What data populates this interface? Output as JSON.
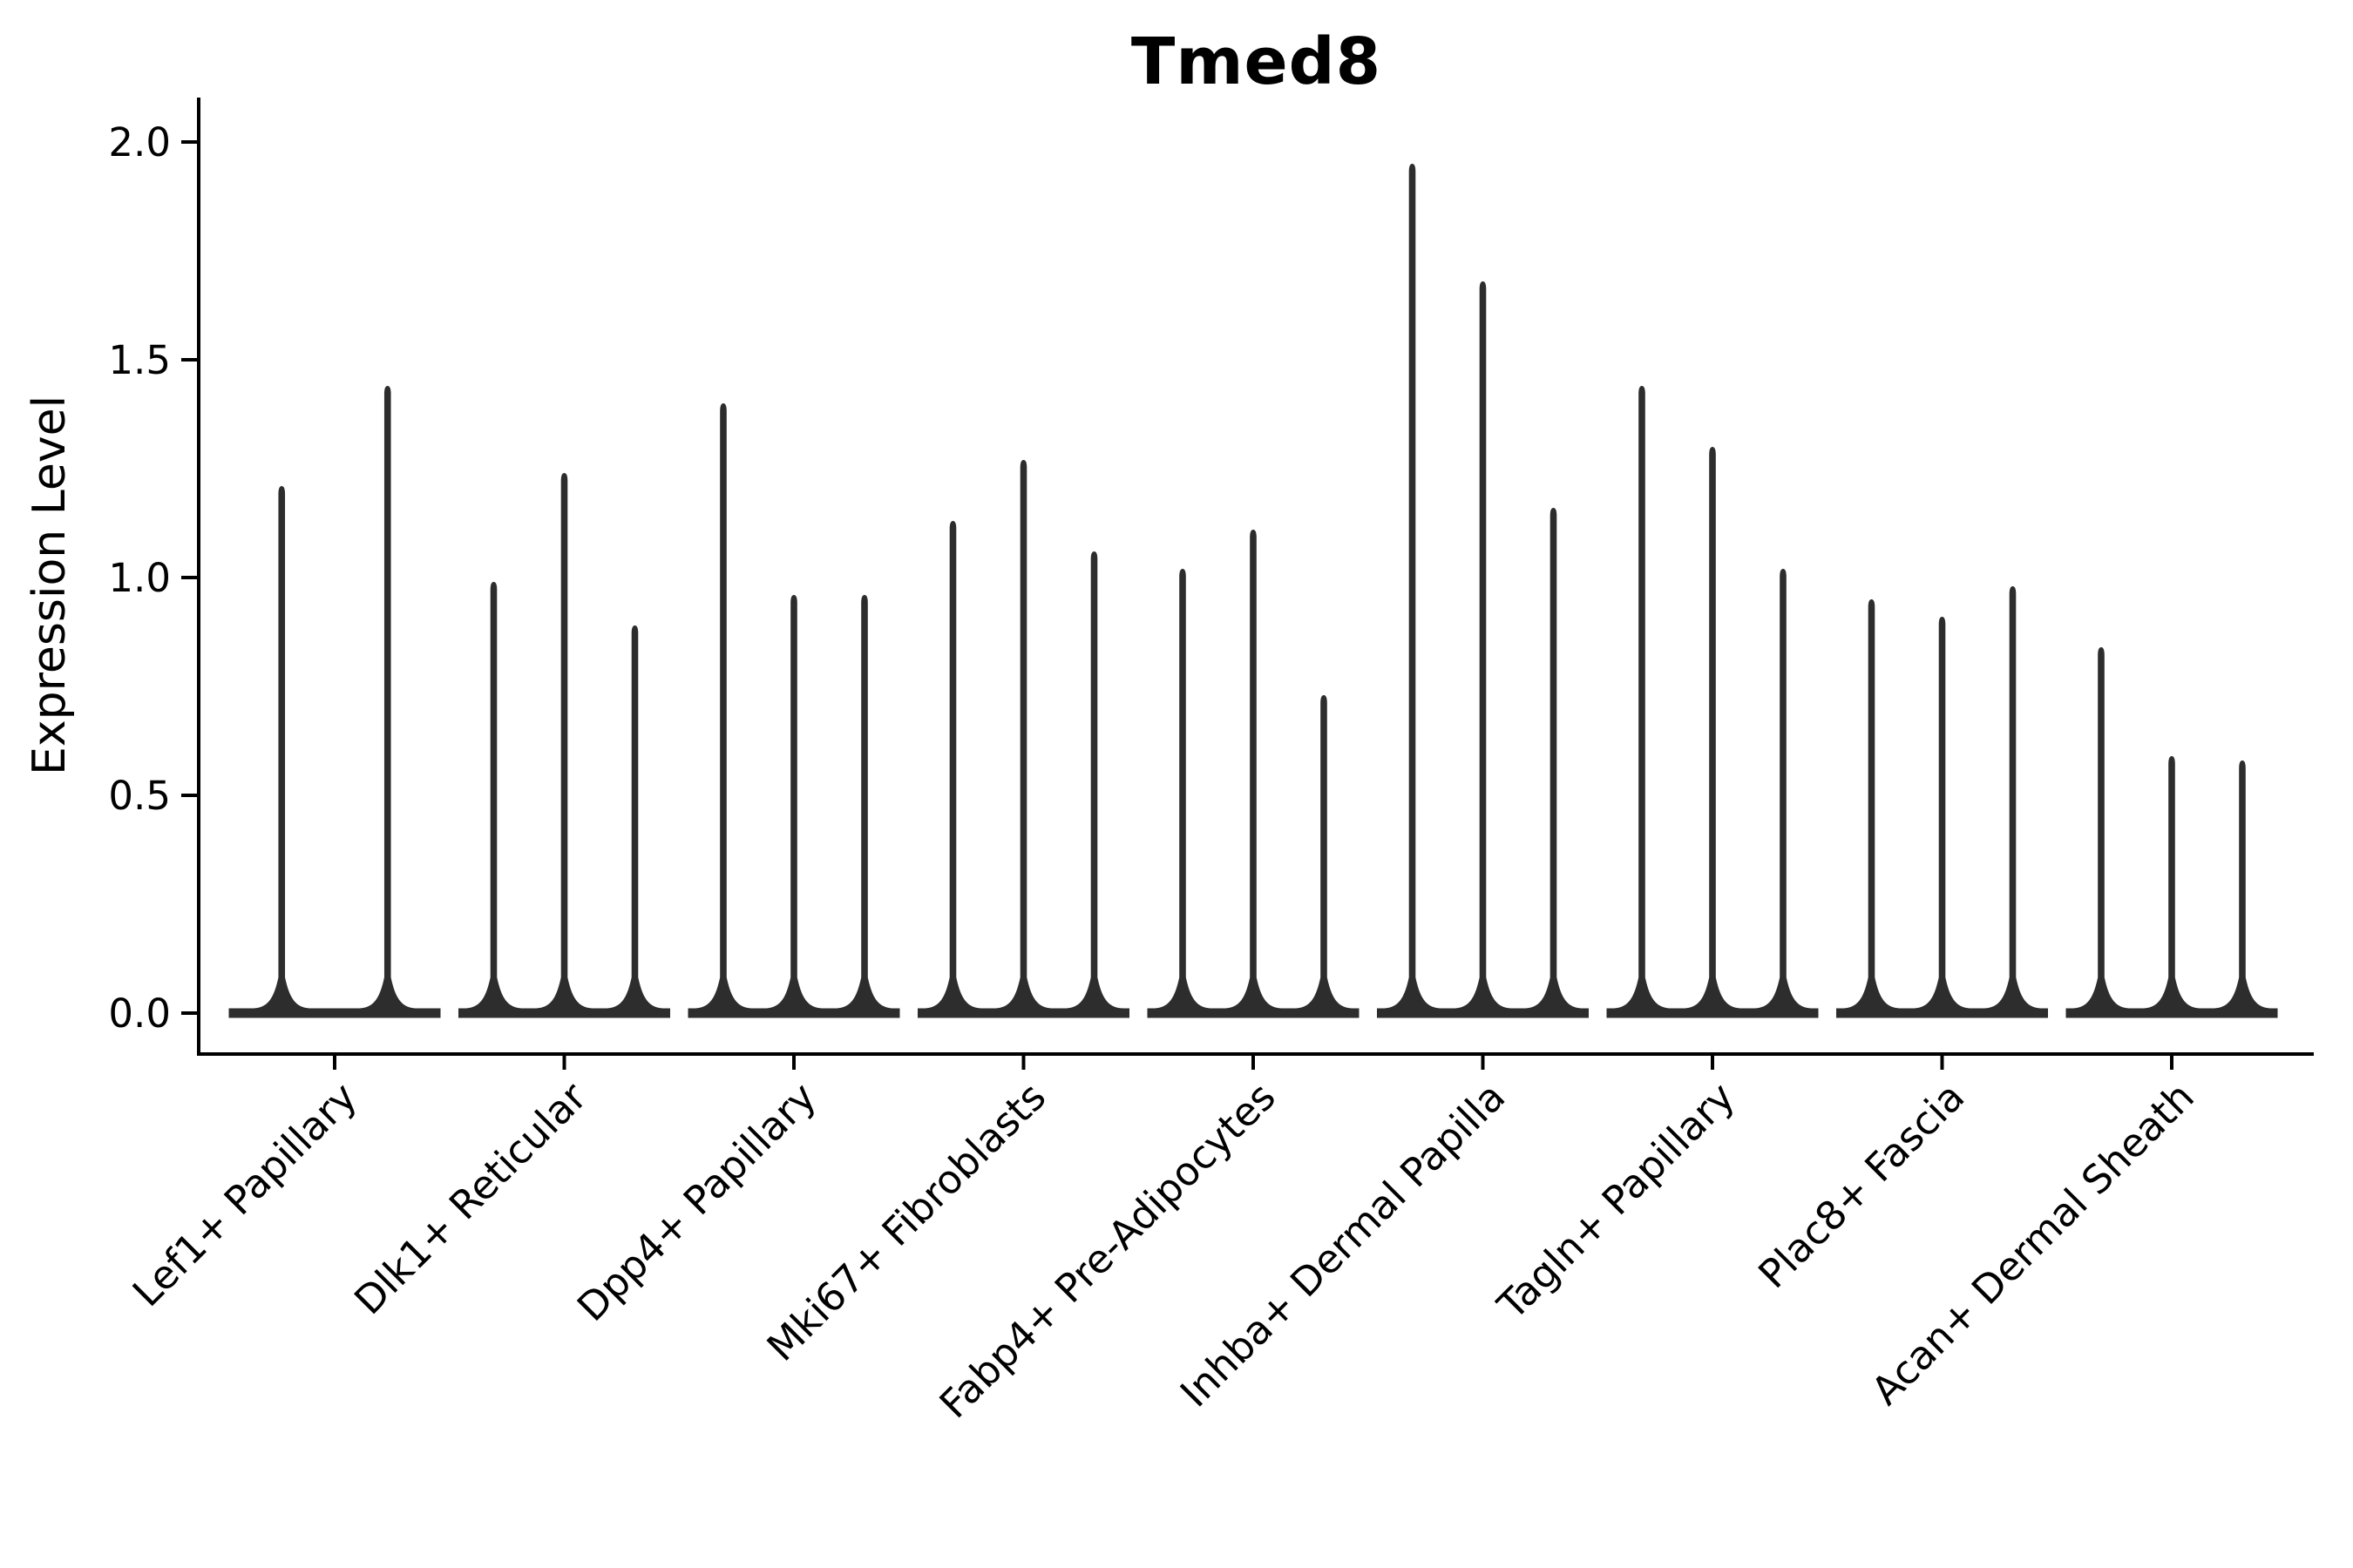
{
  "chart_data": {
    "type": "violin",
    "title": "Tmed8",
    "xlabel": "",
    "ylabel": "Expression Level",
    "ylim": [
      0.0,
      2.05
    ],
    "grid": false,
    "legend": "none",
    "spines": [
      "left",
      "bottom"
    ],
    "x_tick_rotation_deg": 45,
    "y_ticks": [
      0.0,
      0.5,
      1.0,
      1.5,
      2.0
    ],
    "y_tick_labels": [
      "0.0",
      "0.5",
      "1.0",
      "1.5",
      "2.0"
    ],
    "categories": [
      "Lef1+ Papillary",
      "Dlk1+ Reticular",
      "Dpp4+ Papillary",
      "Mki67+ Fibroblasts",
      "Fabp4+ Pre-Adipocytes",
      "Inhba+ Dermal Papilla",
      "Tagln+ Papillary",
      "Plac8+ Fascia",
      "Acan+ Dermal Sheath"
    ],
    "groups": [
      {
        "label": "Lef1+ Papillary",
        "violin_maxima": [
          1.21,
          1.44
        ]
      },
      {
        "label": "Dlk1+ Reticular",
        "violin_maxima": [
          0.99,
          1.24,
          0.89
        ]
      },
      {
        "label": "Dpp4+ Papillary",
        "violin_maxima": [
          1.4,
          0.96,
          0.96
        ]
      },
      {
        "label": "Mki67+ Fibroblasts",
        "violin_maxima": [
          1.13,
          1.27,
          1.06
        ]
      },
      {
        "label": "Fabp4+ Pre-Adipocytes",
        "violin_maxima": [
          1.02,
          1.11,
          0.73
        ]
      },
      {
        "label": "Inhba+ Dermal Papilla",
        "violin_maxima": [
          1.95,
          1.68,
          1.16
        ]
      },
      {
        "label": "Tagln+ Papillary",
        "violin_maxima": [
          1.44,
          1.3,
          1.02
        ]
      },
      {
        "label": "Plac8+ Fascia",
        "violin_maxima": [
          0.95,
          0.91,
          0.98
        ]
      },
      {
        "label": "Acan+ Dermal Sheath",
        "violin_maxima": [
          0.84,
          0.59,
          0.58
        ]
      }
    ],
    "violin_baseline_value": 0.0,
    "colors": {
      "violin": "#2d2d2d",
      "axis": "#000000",
      "text": "#000000",
      "background": "#ffffff"
    }
  }
}
